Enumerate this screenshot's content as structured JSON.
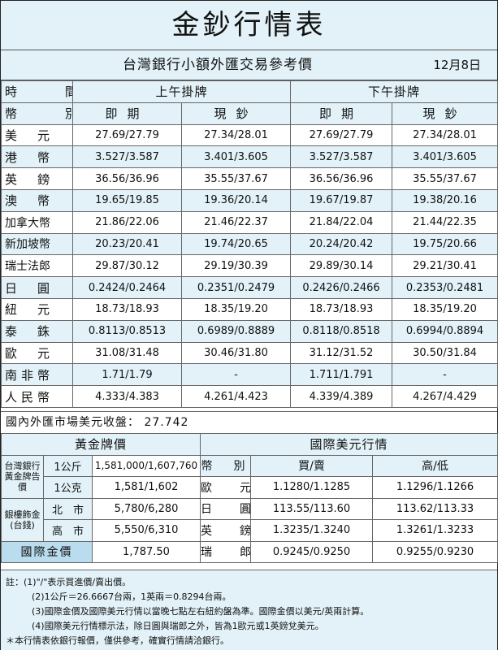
{
  "title": "金鈔行情表",
  "subtitle": "台灣銀行小額外匯交易參考價",
  "date": "12月8日",
  "header": {
    "time_label": "時　間",
    "currency_label": "幣　別",
    "am_label": "上午掛牌",
    "pm_label": "下午掛牌",
    "spot_label": "即期",
    "cash_label": "現鈔"
  },
  "rates": [
    {
      "currency": "美　元",
      "am_spot": "27.69/27.79",
      "am_cash": "27.34/28.01",
      "pm_spot": "27.69/27.79",
      "pm_cash": "27.34/28.01"
    },
    {
      "currency": "港　幣",
      "am_spot": "3.527/3.587",
      "am_cash": "3.401/3.605",
      "pm_spot": "3.527/3.587",
      "pm_cash": "3.401/3.605"
    },
    {
      "currency": "英　鎊",
      "am_spot": "36.56/36.96",
      "am_cash": "35.55/37.67",
      "pm_spot": "36.56/36.96",
      "pm_cash": "35.55/37.67"
    },
    {
      "currency": "澳　幣",
      "am_spot": "19.65/19.85",
      "am_cash": "19.36/20.14",
      "pm_spot": "19.67/19.87",
      "pm_cash": "19.38/20.16"
    },
    {
      "currency": "加拿大幣",
      "am_spot": "21.86/22.06",
      "am_cash": "21.46/22.37",
      "pm_spot": "21.84/22.04",
      "pm_cash": "21.44/22.35"
    },
    {
      "currency": "新加坡幣",
      "am_spot": "20.23/20.41",
      "am_cash": "19.74/20.65",
      "pm_spot": "20.24/20.42",
      "pm_cash": "19.75/20.66"
    },
    {
      "currency": "瑞士法郎",
      "am_spot": "29.87/30.12",
      "am_cash": "29.19/30.39",
      "pm_spot": "29.89/30.14",
      "pm_cash": "29.21/30.41"
    },
    {
      "currency": "日　圓",
      "am_spot": "0.2424/0.2464",
      "am_cash": "0.2351/0.2479",
      "pm_spot": "0.2426/0.2466",
      "pm_cash": "0.2353/0.2481"
    },
    {
      "currency": "紐　元",
      "am_spot": "18.73/18.93",
      "am_cash": "18.35/19.20",
      "pm_spot": "18.73/18.93",
      "pm_cash": "18.35/19.20"
    },
    {
      "currency": "泰　銖",
      "am_spot": "0.8113/0.8513",
      "am_cash": "0.6989/0.8889",
      "pm_spot": "0.8118/0.8518",
      "pm_cash": "0.6994/0.8894"
    },
    {
      "currency": "歐　元",
      "am_spot": "31.08/31.48",
      "am_cash": "30.46/31.80",
      "pm_spot": "31.12/31.52",
      "pm_cash": "30.50/31.84"
    },
    {
      "currency": "南非幣",
      "am_spot": "1.71/1.79",
      "am_cash": "-",
      "pm_spot": "1.711/1.791",
      "pm_cash": "-"
    },
    {
      "currency": "人民幣",
      "am_spot": "4.333/4.383",
      "am_cash": "4.261/4.423",
      "pm_spot": "4.339/4.389",
      "pm_cash": "4.267/4.429"
    }
  ],
  "domestic_usd": "國內外匯市場美元收盤： 27.742",
  "gold": {
    "title": "黃金牌價",
    "bot_label": "台灣銀行黃金牌告價",
    "kg_unit": "1公斤",
    "kg_value": "1,581,000/1,607,760",
    "g_unit": "1公克",
    "g_value": "1,581/1,602",
    "ingot_label": "銀樓飾金(台錢)",
    "north_label": "北　市",
    "north_value": "5,780/6,280",
    "kaohsiung_label": "高　市",
    "kaohsiung_value": "5,550/6,310",
    "intl_label": "國際金價",
    "intl_value": "1,787.50"
  },
  "intl_usd": {
    "title": "國際美元行情",
    "currency_label": "幣　別",
    "buy_sell_label": "買/賣",
    "high_low_label": "高/低",
    "rows": [
      {
        "currency": "歐　元",
        "buy_sell": "1.1280/1.1285",
        "high_low": "1.1296/1.1266"
      },
      {
        "currency": "日　圓",
        "buy_sell": "113.55/113.60",
        "high_low": "113.62/113.33"
      },
      {
        "currency": "英　鎊",
        "buy_sell": "1.3235/1.3240",
        "high_low": "1.3261/1.3233"
      },
      {
        "currency": "瑞　郎",
        "buy_sell": "0.9245/0.9250",
        "high_low": "0.9255/0.9230"
      }
    ]
  },
  "notes": [
    "註：(1)\"/\"表示買進價/賣出價。",
    "(2)1公斤＝26.6667台兩，1英兩＝0.8294台兩。",
    "(3)國際金價及國際美元行情以當晚七點左右紐約盤為準。國際金價以美元/英兩計算。",
    "(4)國際美元行情標示法，除日圓與瑞郎之外，皆為1歐元或1英鎊兌美元。",
    "＊本行情表依銀行報價，僅供參考，確實行情請洽銀行。"
  ]
}
